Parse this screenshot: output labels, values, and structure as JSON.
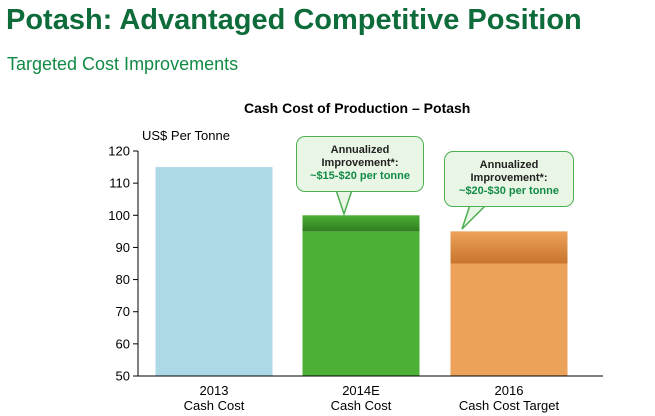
{
  "slide": {
    "title": "Potash: Advantaged Competitive Position",
    "subtitle": "Targeted Cost Improvements"
  },
  "callouts": [
    {
      "line1": "Annualized",
      "line2": "Improvement*:",
      "line3": "~$15-$20 per tonne"
    },
    {
      "line1": "Annualized",
      "line2": "Improvement*:",
      "line3": "~$20-$30 per tonne"
    }
  ],
  "colors": {
    "title": "#0e6b3a",
    "bar_2013": "#add8e6",
    "bar_2014": "#4caf36",
    "bar_2014_band": "#2f7d1f",
    "bar_2016": "#eda25a",
    "bar_2016_band": "#c8742c"
  },
  "chart_data": {
    "type": "bar",
    "title": "Cash Cost of Production – Potash",
    "ylabel": "US$ Per Tonne",
    "ylim": [
      50,
      120
    ],
    "yticks": [
      50,
      60,
      70,
      80,
      90,
      100,
      110,
      120
    ],
    "categories": [
      {
        "line1": "2013",
        "line2": "Cash Cost"
      },
      {
        "line1": "2014E",
        "line2": "Cash Cost"
      },
      {
        "line1": "2016",
        "line2": "Cash Cost Target"
      }
    ],
    "values": [
      115,
      100,
      95
    ],
    "improvement_band_low": [
      null,
      95,
      85
    ]
  }
}
